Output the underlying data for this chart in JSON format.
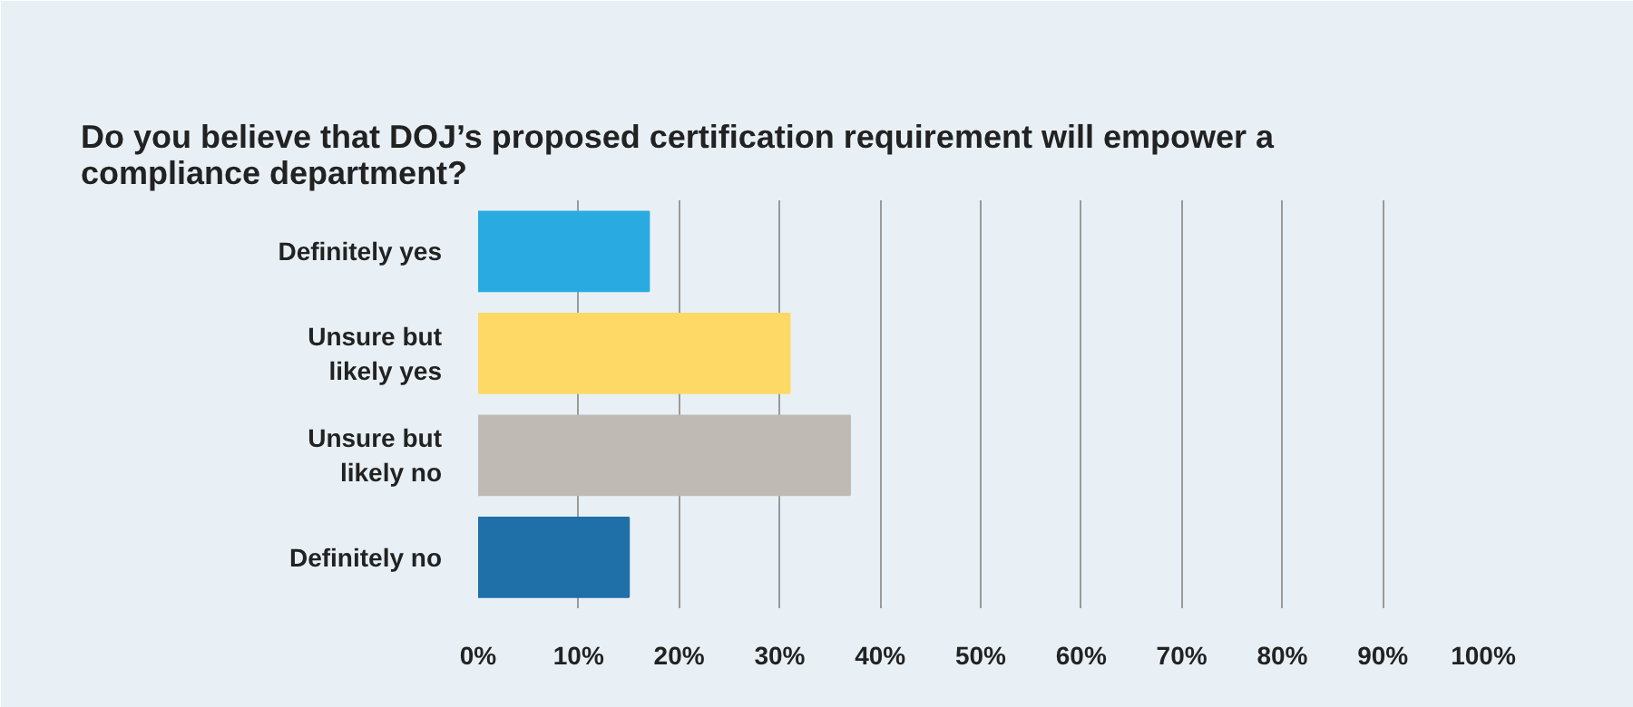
{
  "chart_data": {
    "type": "bar",
    "orientation": "horizontal",
    "title": "Do you believe that DOJ’s proposed certification requirement will empower a compliance department?",
    "categories": [
      "Definitely yes",
      "Unsure but\nlikely yes",
      "Unsure but\nlikely no",
      "Definitely no"
    ],
    "values": [
      17,
      31,
      37,
      15
    ],
    "colors": [
      "#29abe2",
      "#ffd966",
      "#c0bab5",
      "#1f6fa8"
    ],
    "xlim": [
      0,
      100
    ],
    "xticks": [
      {
        "value": 0,
        "label": "0%"
      },
      {
        "value": 10,
        "label": "10%"
      },
      {
        "value": 20,
        "label": "20%"
      },
      {
        "value": 30,
        "label": "30%"
      },
      {
        "value": 40,
        "label": "40%"
      },
      {
        "value": 50,
        "label": "50%"
      },
      {
        "value": 60,
        "label": "60%"
      },
      {
        "value": 70,
        "label": "70%"
      },
      {
        "value": 80,
        "label": "80%"
      },
      {
        "value": 90,
        "label": "90%"
      },
      {
        "value": 100,
        "label": "100%"
      }
    ],
    "grid": "x"
  }
}
